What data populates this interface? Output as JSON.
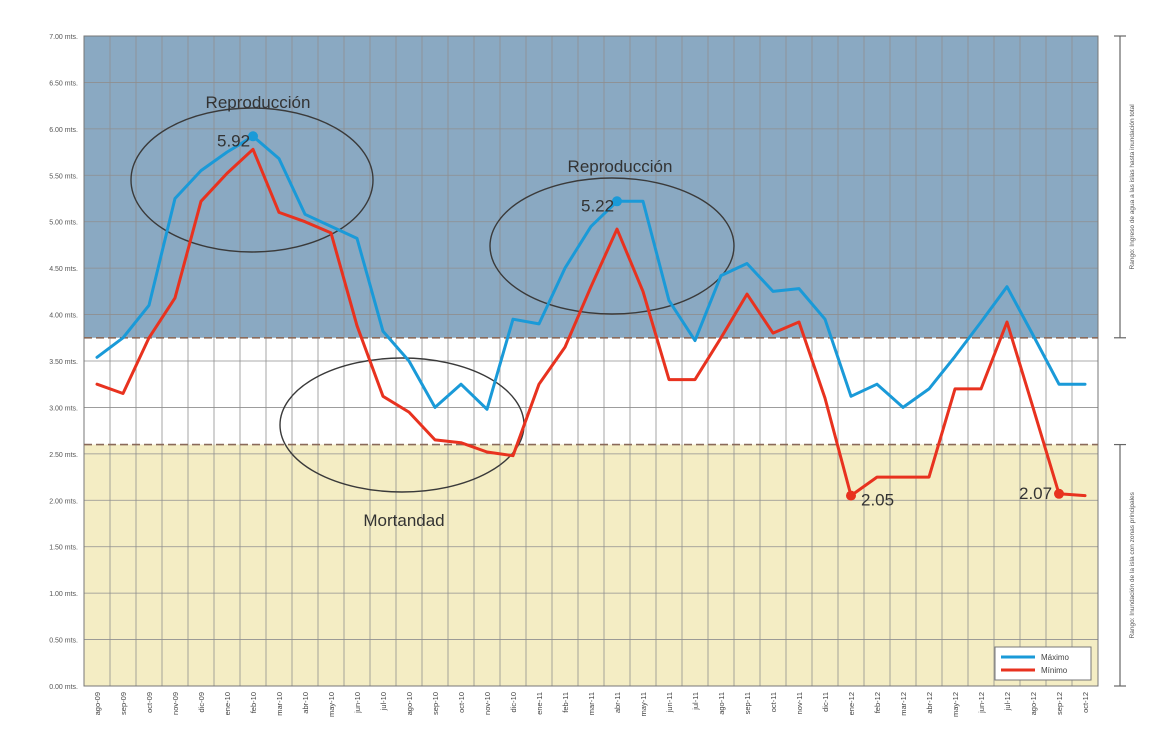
{
  "chart_data": {
    "type": "line",
    "ylim": [
      0,
      7
    ],
    "yticks": [
      0,
      0.5,
      1,
      1.5,
      2,
      2.5,
      3,
      3.5,
      4,
      4.5,
      5,
      5.5,
      6,
      6.5,
      7
    ],
    "ytick_labels": [
      "0.00 mts.",
      "0.50 mts.",
      "1.00 mts.",
      "1.50 mts.",
      "2.00 mts.",
      "2.50 mts.",
      "3.00 mts.",
      "3.50 mts.",
      "4.00 mts.",
      "4.50 mts.",
      "5.00 mts.",
      "5.50 mts.",
      "6.00 mts.",
      "6.50 mts.",
      "7.00 mts."
    ],
    "categories": [
      "ago-09",
      "sep-09",
      "oct-09",
      "nov-09",
      "dic-09",
      "ene-10",
      "feb-10",
      "mar-10",
      "abr-10",
      "may-10",
      "jun-10",
      "jul-10",
      "ago-10",
      "sep-10",
      "oct-10",
      "nov-10",
      "dic-10",
      "ene-11",
      "feb-11",
      "mar-11",
      "abr-11",
      "may-11",
      "jun-11",
      "jul-11",
      "ago-11",
      "sep-11",
      "oct-11",
      "nov-11",
      "dic-11",
      "ene-12",
      "feb-12",
      "mar-12",
      "abr-12",
      "may-12",
      "jun-12",
      "jul-12",
      "ago-12",
      "sep-12",
      "oct-12"
    ],
    "series": [
      {
        "name": "Máximo",
        "color": "#1a9ad8",
        "values": [
          3.54,
          3.75,
          4.1,
          5.25,
          5.55,
          5.75,
          5.92,
          5.68,
          5.08,
          4.95,
          4.82,
          3.82,
          3.5,
          3.0,
          3.25,
          2.98,
          3.95,
          3.9,
          4.5,
          4.95,
          5.22,
          5.22,
          4.15,
          3.72,
          4.42,
          4.55,
          4.25,
          4.28,
          3.95,
          3.12,
          3.25,
          3.0,
          3.2,
          3.55,
          3.92,
          4.3,
          3.78,
          3.25,
          3.25
        ]
      },
      {
        "name": "Mínimo",
        "color": "#e8321f",
        "values": [
          3.25,
          3.15,
          3.75,
          4.18,
          5.22,
          5.52,
          5.78,
          5.1,
          5.0,
          4.88,
          3.88,
          3.12,
          2.95,
          2.65,
          2.62,
          2.52,
          2.48,
          3.25,
          3.65,
          4.3,
          4.92,
          4.25,
          3.3,
          3.3,
          3.75,
          4.22,
          3.8,
          3.92,
          3.1,
          2.05,
          2.25,
          2.25,
          2.25,
          3.2,
          3.2,
          3.92,
          3.0,
          2.07,
          2.05
        ]
      }
    ],
    "bands": [
      {
        "label": "Rango: Ingreso de agua a las islas hasta inundación total",
        "from": 3.75,
        "to": 7.0,
        "color": "#8aa9c2"
      },
      {
        "label": "Rango: Inundación de la isla con zonas principales",
        "from": 0,
        "to": 2.6,
        "color": "#f4edc4"
      }
    ],
    "threshold_lines": [
      3.75,
      2.6
    ],
    "annotations": [
      {
        "text": "Reproducción",
        "kind": "ellipse"
      },
      {
        "text": "Reproducción",
        "kind": "ellipse"
      },
      {
        "text": "Mortandad",
        "kind": "ellipse"
      },
      {
        "text": "5.92",
        "kind": "point",
        "series": 0,
        "index": 6
      },
      {
        "text": "5.22",
        "kind": "point",
        "series": 0,
        "index": 20
      },
      {
        "text": "2.05",
        "kind": "point",
        "series": 1,
        "index": 29
      },
      {
        "text": "2.07",
        "kind": "point",
        "series": 1,
        "index": 37
      }
    ],
    "legend": {
      "placement": "bottom-right",
      "entries": [
        "Máximo",
        "Mínimo"
      ]
    },
    "grid": true
  }
}
